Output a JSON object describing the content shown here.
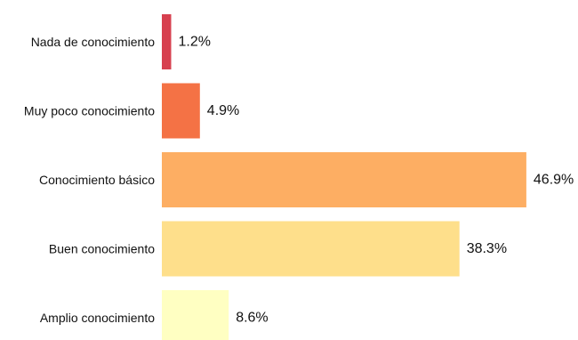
{
  "chart_data": {
    "type": "bar",
    "orientation": "horizontal",
    "categories": [
      "Nada de conocimiento",
      "Muy poco conocimiento",
      "Conocimiento básico",
      "Buen conocimiento",
      "Amplio conocimiento"
    ],
    "values": [
      1.2,
      4.9,
      46.9,
      38.3,
      8.6
    ],
    "value_labels": [
      "1.2%",
      "4.9%",
      "46.9%",
      "38.3%",
      "8.6%"
    ],
    "unit": "%",
    "colors": [
      "#d7404f",
      "#f47245",
      "#fdae63",
      "#fedf8b",
      "#ffffc2"
    ],
    "grid": false,
    "legend": "none"
  }
}
